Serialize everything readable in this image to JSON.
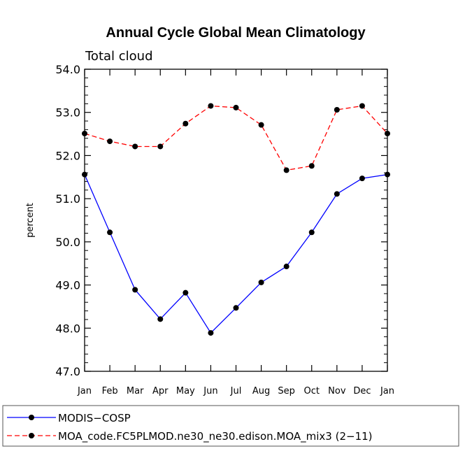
{
  "chart_data": {
    "type": "line",
    "title": "Annual Cycle Global Mean Climatology",
    "subtitle": "Total cloud",
    "xlabel": "",
    "ylabel": "percent",
    "categories": [
      "Jan",
      "Feb",
      "Mar",
      "Apr",
      "May",
      "Jun",
      "Jul",
      "Aug",
      "Sep",
      "Oct",
      "Nov",
      "Dec",
      "Jan"
    ],
    "ylim": [
      47.0,
      54.0
    ],
    "yticks": [
      "47.0",
      "48.0",
      "49.0",
      "50.0",
      "51.0",
      "52.0",
      "53.0",
      "54.0"
    ],
    "grid": false,
    "legend_position": "bottom",
    "series": [
      {
        "name": "MODIS−COSP",
        "color": "#0000ff",
        "dash": "solid",
        "values": [
          51.56,
          50.22,
          48.89,
          48.21,
          48.82,
          47.89,
          48.47,
          49.06,
          49.43,
          50.22,
          51.11,
          51.47,
          51.56
        ]
      },
      {
        "name": "MOA_code.FC5PLMOD.ne30_ne30.edison.MOA_mix3 (2−11)",
        "color": "#ff0000",
        "dash": "dashed",
        "values": [
          52.51,
          52.33,
          52.21,
          52.21,
          52.74,
          53.15,
          53.11,
          52.71,
          51.66,
          51.76,
          53.06,
          53.15,
          52.51
        ]
      }
    ]
  }
}
